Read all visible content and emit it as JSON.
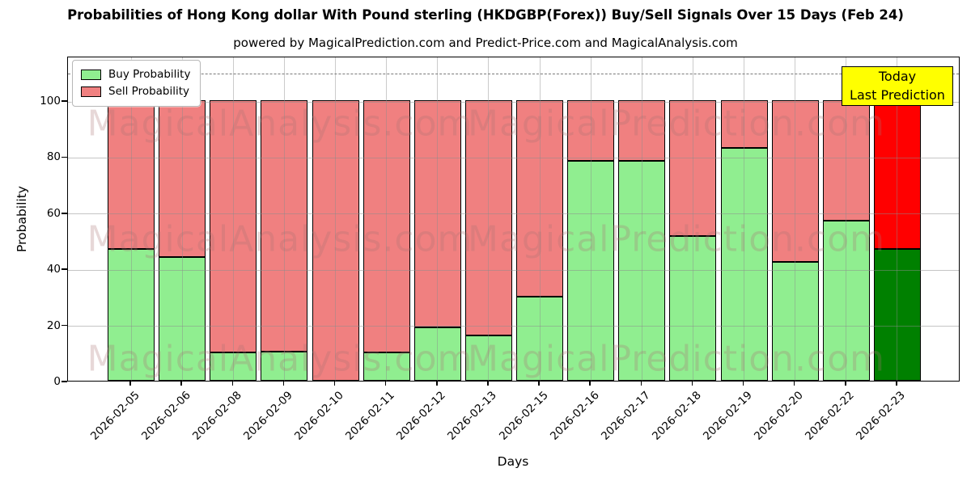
{
  "chart_data": {
    "type": "bar",
    "stacked": true,
    "title": "Probabilities of Hong Kong dollar With Pound sterling (HKDGBP(Forex)) Buy/Sell Signals Over 15 Days (Feb 24)",
    "subtitle": "powered by MagicalPrediction.com and Predict-Price.com and MagicalAnalysis.com",
    "xlabel": "Days",
    "ylabel": "Probability",
    "categories": [
      "2026-02-05",
      "2026-02-06",
      "2026-02-08",
      "2026-02-09",
      "2026-02-10",
      "2026-02-11",
      "2026-02-12",
      "2026-02-13",
      "2026-02-15",
      "2026-02-16",
      "2026-02-17",
      "2026-02-18",
      "2026-02-19",
      "2026-02-20",
      "2026-02-22",
      "2026-02-23"
    ],
    "series": [
      {
        "name": "Buy Probability",
        "color": "#90EE90",
        "values": [
          47,
          44,
          10,
          10.5,
          0,
          10,
          19,
          16,
          30,
          78.5,
          78.5,
          51.5,
          83,
          42.5,
          57,
          47
        ]
      },
      {
        "name": "Sell Probability",
        "color": "#F08080",
        "values": [
          53,
          56,
          90,
          89.5,
          100,
          90,
          81,
          84,
          70,
          21.5,
          21.5,
          48.5,
          17,
          57.5,
          43,
          53
        ]
      }
    ],
    "last_bar_highlight": {
      "buy_color": "#008000",
      "sell_color": "#FF0000"
    },
    "ylim": [
      0,
      116
    ],
    "yticks": [
      0,
      20,
      40,
      60,
      80,
      100
    ],
    "dashed_line_y": 110,
    "grid": true,
    "legend_position": "upper left",
    "annotation_box": {
      "lines": [
        "Today",
        "Last Prediction"
      ],
      "bg_color": "#FFFF00"
    },
    "watermarks": {
      "left": "MagicalAnalysis.com",
      "right": "MagicalPrediction.com"
    }
  }
}
